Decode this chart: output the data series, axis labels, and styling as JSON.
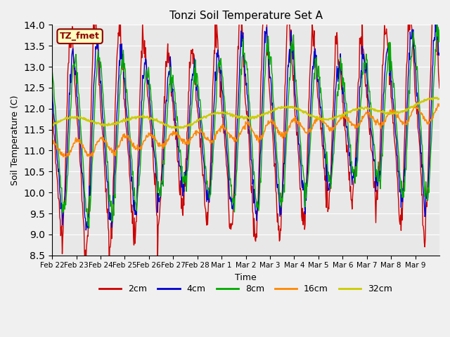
{
  "title": "Tonzi Soil Temperature Set A",
  "xlabel": "Time",
  "ylabel": "Soil Temperature (C)",
  "ylim": [
    8.5,
    14.0
  ],
  "yticks": [
    8.5,
    9.0,
    9.5,
    10.0,
    10.5,
    11.0,
    11.5,
    12.0,
    12.5,
    13.0,
    13.5,
    14.0
  ],
  "annotation": "TZ_fmet",
  "colors": {
    "2cm": "#cc0000",
    "4cm": "#0000cc",
    "8cm": "#00aa00",
    "16cm": "#ff8800",
    "32cm": "#cccc00"
  },
  "fig_facecolor": "#f0f0f0",
  "ax_facecolor": "#e8e8e8",
  "date_labels": [
    "Feb 22",
    "Feb 23",
    "Feb 24",
    "Feb 25",
    "Feb 26",
    "Feb 27",
    "Feb 28",
    "Mar 1",
    "Mar 2",
    "Mar 3",
    "Mar 4",
    "Mar 5",
    "Mar 6",
    "Mar 7",
    "Mar 8",
    "Mar 9"
  ],
  "n_points": 768,
  "seed": 42
}
